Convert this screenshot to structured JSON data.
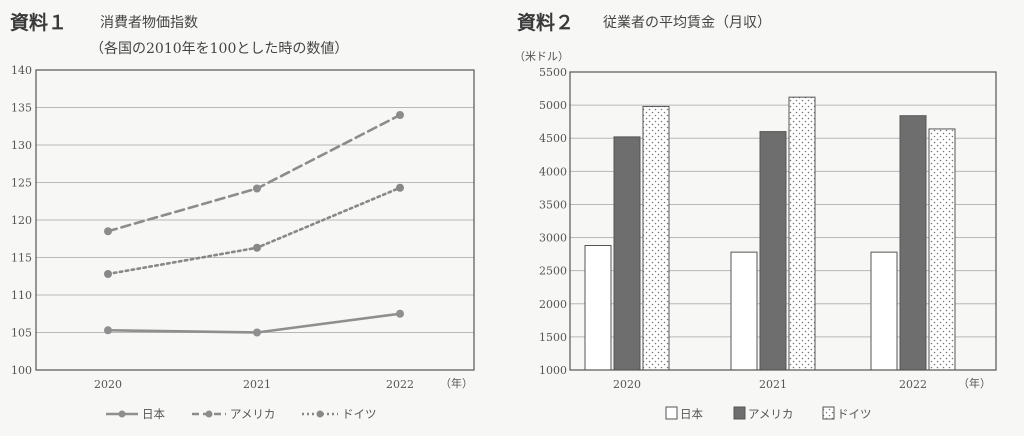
{
  "colors": {
    "japan": "#8f8f8f",
    "usa": "#8c8c8c",
    "germany": "#888888",
    "bar_japan_fill": "#ffffff",
    "bar_usa_fill": "#6e6e6e",
    "grid": "#b8b8b8",
    "axis": "#555555"
  },
  "chart_data": [
    {
      "type": "line",
      "label": "資料１",
      "title": "消費者物価指数",
      "subtitle": "（各国の2010年を100とした時の数値）",
      "categories": [
        "2020",
        "2021",
        "2022"
      ],
      "xunit": "（年）",
      "ylim": [
        100,
        140
      ],
      "yticks": [
        100,
        105,
        110,
        115,
        120,
        125,
        130,
        135,
        140
      ],
      "ytick_labels": [
        "100",
        "105",
        "110",
        "115",
        "120",
        "125",
        "130",
        "135",
        "140"
      ],
      "grid": true,
      "legend_position": "bottom",
      "series": [
        {
          "name": "日本",
          "legend": "日本",
          "style": "solid",
          "values": [
            105.3,
            105.0,
            107.5
          ]
        },
        {
          "name": "アメリカ",
          "legend": "アメリカ",
          "style": "dashed",
          "values": [
            118.5,
            124.2,
            134.0
          ]
        },
        {
          "name": "ドイツ",
          "legend": "ドイツ",
          "style": "dotted",
          "values": [
            112.8,
            116.3,
            124.3
          ]
        }
      ]
    },
    {
      "type": "bar",
      "label": "資料２",
      "title": "従業者の平均賃金（月収）",
      "ylabel": "（米ドル）",
      "categories": [
        "2020",
        "2021",
        "2022"
      ],
      "xunit": "（年）",
      "ylim": [
        1000,
        5500
      ],
      "yticks": [
        1000,
        1500,
        2000,
        2500,
        3000,
        3500,
        4000,
        4500,
        5000,
        5500
      ],
      "ytick_labels": [
        "1000",
        "1500",
        "2000",
        "2500",
        "3000",
        "3500",
        "4000",
        "4500",
        "5000",
        "5500"
      ],
      "grid": true,
      "legend_position": "bottom",
      "series": [
        {
          "name": "日本",
          "legend": "日本",
          "style": "white",
          "values": [
            2880,
            2780,
            2780
          ]
        },
        {
          "name": "アメリカ",
          "legend": "アメリカ",
          "style": "dark",
          "values": [
            4520,
            4600,
            4840
          ]
        },
        {
          "name": "ドイツ",
          "legend": "ドイツ",
          "style": "dotted",
          "values": [
            4980,
            5120,
            4640
          ]
        }
      ]
    }
  ]
}
